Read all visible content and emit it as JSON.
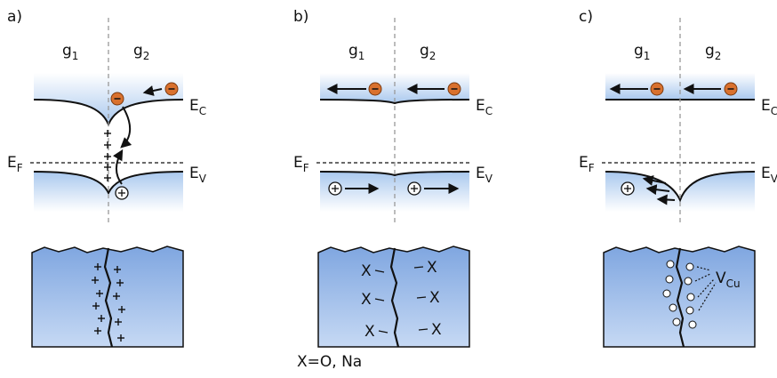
{
  "panels": [
    {
      "label": "a)"
    },
    {
      "label": "b)"
    },
    {
      "label": "c)"
    }
  ],
  "symbols": {
    "g1": {
      "base": "g",
      "sub": "1"
    },
    "g2": {
      "base": "g",
      "sub": "2"
    },
    "ec": {
      "base": "E",
      "sub": "C"
    },
    "ef": {
      "base": "E",
      "sub": "F"
    },
    "ev": {
      "base": "E",
      "sub": "V"
    },
    "vcu": {
      "base": "V",
      "sub": "Cu"
    }
  },
  "defect": "X",
  "note": "X=O, Na"
}
